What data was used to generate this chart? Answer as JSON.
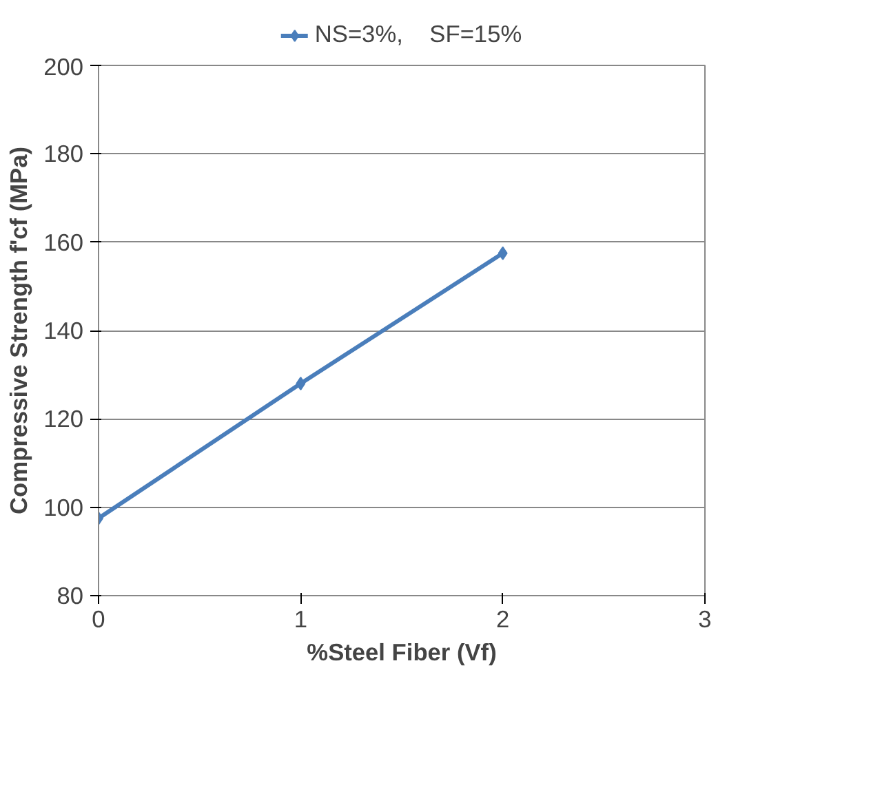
{
  "chart_data": {
    "type": "line",
    "xlabel": "%Steel Fiber (Vf)",
    "ylabel": "Compressive Strength f'cf (MPa)",
    "x": [
      0,
      1,
      2
    ],
    "series": [
      {
        "name": "NS=3%,    SF=15%",
        "color": "#4a7ebb",
        "values": [
          97.5,
          128,
          157.5
        ]
      }
    ],
    "xlim": [
      0,
      3
    ],
    "xticks": [
      0,
      1,
      2,
      3
    ],
    "ylim": [
      80,
      200
    ],
    "yticks": [
      80,
      100,
      120,
      140,
      160,
      180,
      200
    ],
    "grid": "y",
    "legend": "top",
    "marker": "diamond",
    "line_style": "solid"
  }
}
